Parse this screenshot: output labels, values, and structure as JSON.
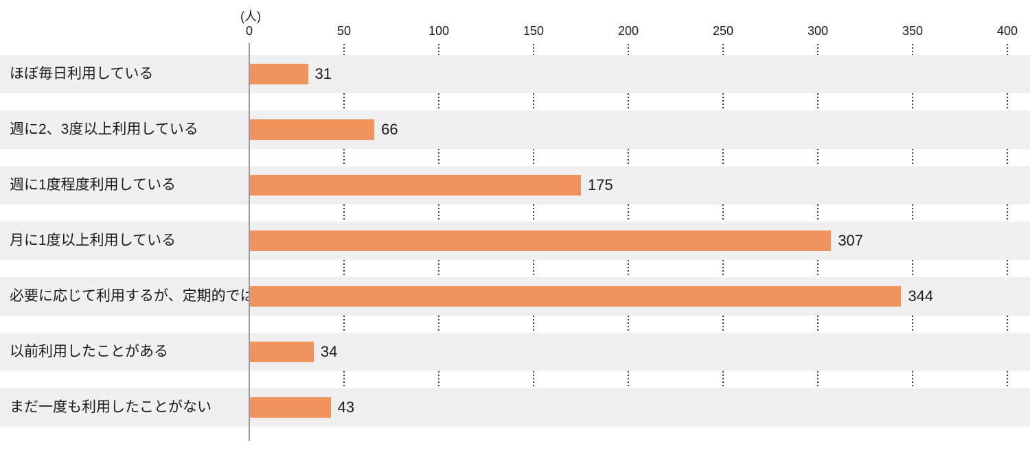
{
  "chart_data": {
    "type": "bar",
    "orientation": "horizontal",
    "title": "",
    "unit_label": "(人)",
    "xlabel": "",
    "ylabel": "",
    "xlim": [
      0,
      400
    ],
    "xticks": [
      0,
      50,
      100,
      150,
      200,
      250,
      300,
      350,
      400
    ],
    "grid": "dotted vertical lines at every 50, visible in gaps between row bands",
    "legend": "none",
    "categories": [
      "ほぼ毎日利用している",
      "週に2、3度以上利用している",
      "週に1度程度利用している",
      "月に1度以上利用している",
      "必要に応じて利用するが、定期的ではない",
      "以前利用したことがある",
      "まだ一度も利用したことがない"
    ],
    "values": [
      31,
      66,
      175,
      307,
      344,
      34,
      43
    ],
    "colors": {
      "bar": "#F0935E",
      "row_band": "#F0F0F0",
      "axis_line": "#9B9B9B",
      "gridline_dots": "#3A3A3A",
      "text": "#1A1A1A",
      "background": "#FFFFFF"
    }
  }
}
